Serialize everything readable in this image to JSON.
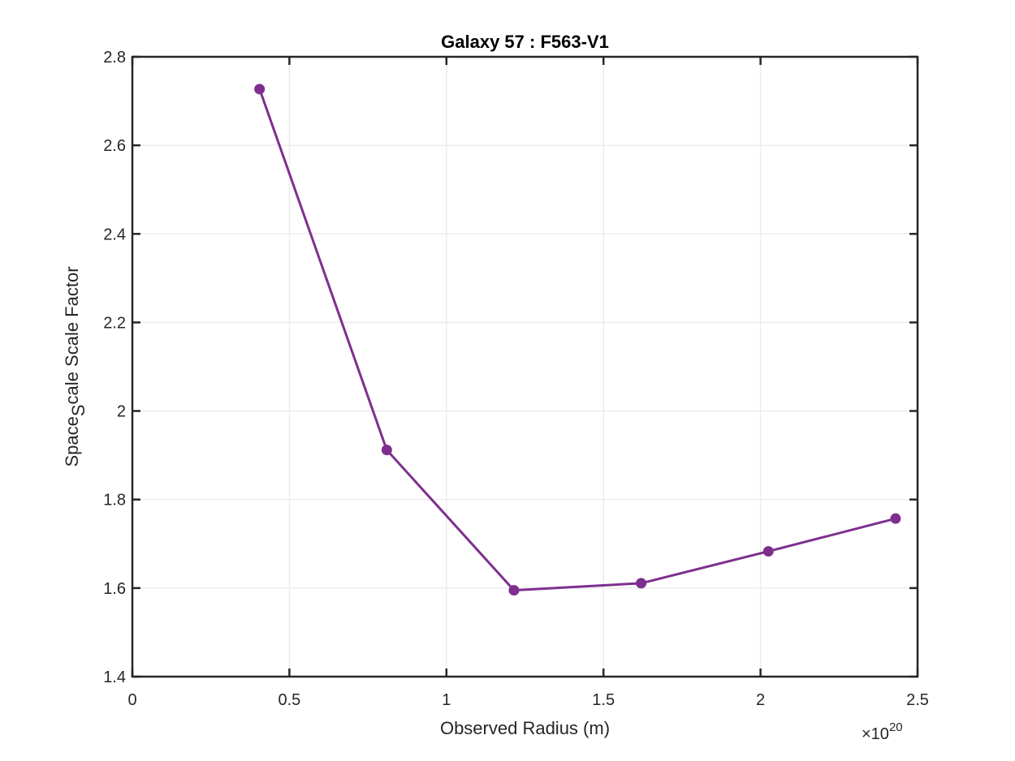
{
  "chart_data": {
    "type": "line",
    "title": "Galaxy 57 : F563-V1",
    "xlabel": "Observed Radius (m)",
    "ylabel_main": "Space",
    "ylabel_sub": "S",
    "ylabel_rest": "cale Scale Factor",
    "x_exponent_prefix": "×10",
    "x_exponent_power": "20",
    "xlim": [
      0,
      2.5
    ],
    "ylim": [
      1.4,
      2.8
    ],
    "xticks": [
      {
        "value": 0,
        "label": "0"
      },
      {
        "value": 0.5,
        "label": "0.5"
      },
      {
        "value": 1,
        "label": "1"
      },
      {
        "value": 1.5,
        "label": "1.5"
      },
      {
        "value": 2,
        "label": "2"
      },
      {
        "value": 2.5,
        "label": "2.5"
      }
    ],
    "yticks": [
      {
        "value": 1.4,
        "label": "1.4"
      },
      {
        "value": 1.6,
        "label": "1.6"
      },
      {
        "value": 1.8,
        "label": "1.8"
      },
      {
        "value": 2.0,
        "label": "2"
      },
      {
        "value": 2.2,
        "label": "2.2"
      },
      {
        "value": 2.4,
        "label": "2.4"
      },
      {
        "value": 2.6,
        "label": "2.6"
      },
      {
        "value": 2.8,
        "label": "2.8"
      }
    ],
    "grid": true,
    "series": [
      {
        "color": "#7e2f8e",
        "marker": "circle",
        "x": [
          0.405,
          0.81,
          1.215,
          1.62,
          2.025,
          2.43
        ],
        "y": [
          2.727,
          1.912,
          1.595,
          1.611,
          1.683,
          1.757
        ]
      }
    ]
  }
}
